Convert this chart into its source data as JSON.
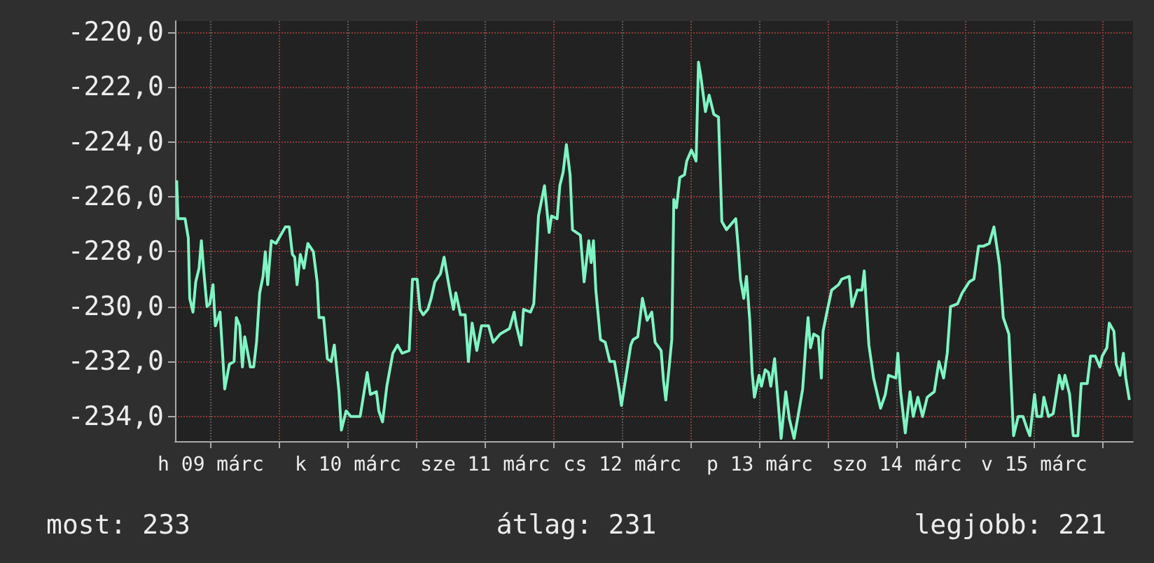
{
  "chart_data": {
    "type": "line",
    "x": [
      "--03-09T06:03",
      "--03-09T06:17",
      "--03-09T07:31",
      "--03-09T08:05",
      "--03-09T08:20",
      "--03-09T08:54",
      "--03-09T09:23",
      "--03-09T09:58",
      "--03-09T10:22",
      "--03-09T10:47",
      "--03-09T11:21",
      "--03-09T11:50",
      "--03-09T12:24",
      "--03-09T12:49",
      "--03-09T13:38",
      "--03-09T14:27",
      "--03-09T15:16",
      "--03-09T16:05",
      "--03-09T16:29",
      "--03-09T17:04",
      "--03-09T17:33",
      "--03-09T17:57",
      "--03-09T18:56",
      "--03-09T19:31",
      "--03-09T20:01",
      "--03-09T20:34",
      "--03-09T21:09",
      "--03-09T21:33",
      "--03-09T21:58",
      "--03-09T22:36",
      "--03-09T23:25",
      "--03-10T00:14",
      "--03-10T01:03",
      "--03-10T01:44",
      "--03-10T02:17",
      "--03-10T02:41",
      "--03-10T03:06",
      "--03-10T03:40",
      "--03-10T04:19",
      "--03-10T04:59",
      "--03-10T05:57",
      "--03-10T06:37",
      "--03-10T06:56",
      "--03-10T07:45",
      "--03-10T08:24",
      "--03-10T09:04",
      "--03-10T09:37",
      "--03-10T10:26",
      "--03-10T10:51",
      "--03-10T11:41",
      "--03-10T12:30",
      "--03-10T14:08",
      "--03-10T15:22",
      "--03-10T15:55",
      "--03-10T16:59",
      "--03-10T17:24",
      "--03-10T18:03",
      "--03-10T18:48",
      "--03-10T19:51",
      "--03-10T20:40",
      "--03-10T21:29",
      "--03-10T22:42",
      "--03-10T23:17",
      "--03-11T00:06",
      "--03-11T00:35",
      "--03-11T01:09",
      "--03-11T01:58",
      "--03-11T02:33",
      "--03-11T03:12",
      "--03-11T04:11",
      "--03-11T04:49",
      "--03-11T05:38",
      "--03-11T06:27",
      "--03-11T06:52",
      "--03-11T07:41",
      "--03-11T08:30",
      "--03-11T09:04",
      "--03-11T09:43",
      "--03-11T10:32",
      "--03-11T11:21",
      "--03-11T12:35",
      "--03-11T13:24",
      "--03-11T14:37",
      "--03-11T16:15",
      "--03-11T17:04",
      "--03-11T17:28",
      "--03-11T18:17",
      "--03-11T18:42",
      "--03-11T19:55",
      "--03-11T20:30",
      "--03-11T21:19",
      "--03-11T22:22",
      "--03-11T23:11",
      "--03-11T23:36",
      "--03-12T00:35",
      "--03-12T01:03",
      "--03-12T01:38",
      "--03-12T02:12",
      "--03-12T02:51",
      "--03-12T03:16",
      "--03-12T04:39",
      "--03-12T05:18",
      "--03-12T06:07",
      "--03-12T06:32",
      "--03-12T06:56",
      "--03-12T07:21",
      "--03-12T08:10",
      "--03-12T08:59",
      "--03-12T09:48",
      "--03-12T10:36",
      "--03-12T11:25",
      "--03-12T11:50",
      "--03-12T12:39",
      "--03-12T13:28",
      "--03-12T13:52",
      "--03-12T14:41",
      "--03-12T15:30",
      "--03-12T16:19",
      "--03-12T17:08",
      "--03-12T17:43",
      "--03-12T18:46",
      "--03-12T19:11",
      "--03-12T19:35",
      "--03-12T20:10",
      "--03-12T20:38",
      "--03-12T20:59",
      "--03-12T21:27",
      "--03-12T22:02",
      "--03-12T22:51",
      "--03-12T23:15",
      "--03-13T00:04",
      "--03-13T00:53",
      "--03-13T01:18",
      "--03-13T01:42",
      "--03-13T02:31",
      "--03-13T03:10",
      "--03-13T03:59",
      "--03-13T04:48",
      "--03-13T05:23",
      "--03-13T06:12",
      "--03-13T07:00",
      "--03-13T07:49",
      "--03-13T08:14",
      "--03-13T08:38",
      "--03-13T09:13",
      "--03-13T09:42",
      "--03-13T10:16",
      "--03-13T10:41",
      "--03-13T11:05",
      "--03-13T11:54",
      "--03-13T12:19",
      "--03-13T12:58",
      "--03-13T13:32",
      "--03-13T13:57",
      "--03-13T14:37",
      "--03-13T15:10",
      "--03-13T15:45",
      "--03-13T16:34",
      "--03-13T17:12",
      "--03-13T18:01",
      "--03-13T18:42",
      "--03-13T19:31",
      "--03-13T20:04",
      "--03-13T20:28",
      "--03-13T20:53",
      "--03-13T21:27",
      "--03-13T22:16",
      "--03-13T22:47",
      "--03-13T23:05",
      "--03-13T23:46",
      "--03-14T00:35",
      "--03-14T01:48",
      "--03-14T02:21",
      "--03-14T03:40",
      "--03-14T04:09",
      "--03-14T05:04",
      "--03-14T05:53",
      "--03-14T06:17",
      "--03-14T07:06",
      "--03-14T07:55",
      "--03-14T09:09",
      "--03-14T09:58",
      "--03-14T10:32",
      "--03-14T11:50",
      "--03-14T12:10",
      "--03-14T12:39",
      "--03-14T13:28",
      "--03-14T14:17",
      "--03-14T14:51",
      "--03-14T15:40",
      "--03-14T16:29",
      "--03-14T17:18",
      "--03-14T18:32",
      "--03-14T19:21",
      "--03-14T20:10",
      "--03-14T20:48",
      "--03-14T21:23",
      "--03-14T22:36",
      "--03-14T23:25",
      "--03-15T00:39",
      "--03-15T01:28",
      "--03-15T02:17",
      "--03-15T03:06",
      "--03-15T04:09",
      "--03-15T04:58",
      "--03-15T05:57",
      "--03-15T06:36",
      "--03-15T07:35",
      "--03-15T08:24",
      "--03-15T09:13",
      "--03-15T10:02",
      "--03-15T10:51",
      "--03-15T11:15",
      "--03-15T12:04",
      "--03-15T12:29",
      "--03-15T13:18",
      "--03-15T13:42",
      "--03-15T14:31",
      "--03-15T15:20",
      "--03-15T16:24",
      "--03-15T16:58",
      "--03-15T17:23",
      "--03-15T18:12",
      "--03-15T18:50",
      "--03-15T19:39",
      "--03-15T20:14",
      "--03-15T21:17",
      "--03-15T21:52",
      "--03-15T22:41",
      "--03-15T23:30",
      "--03-15T23:54",
      "--03-16T00:43",
      "--03-16T01:08",
      "--03-16T01:57",
      "--03-16T02:21",
      "--03-16T03:01",
      "--03-16T03:36",
      "--03-16T04:01",
      "--03-16T04:39"
    ],
    "series": [
      {
        "color": "#7ff5c4",
        "values": [
          -225.4,
          -226.8,
          -226.8,
          -227.5,
          -229.7,
          -230.2,
          -229.1,
          -228.6,
          -227.6,
          -228.7,
          -230.0,
          -229.9,
          -229.2,
          -230.7,
          -230.2,
          -233.0,
          -232.1,
          -232.0,
          -230.4,
          -230.7,
          -232.2,
          -231.1,
          -232.2,
          -232.2,
          -231.3,
          -229.5,
          -228.9,
          -228.0,
          -229.2,
          -227.6,
          -227.7,
          -227.4,
          -227.1,
          -227.1,
          -228.1,
          -228.2,
          -229.2,
          -228.1,
          -228.6,
          -227.7,
          -228.0,
          -229.1,
          -230.4,
          -230.4,
          -231.9,
          -232.0,
          -231.4,
          -233.1,
          -234.5,
          -233.8,
          -234.0,
          -234.0,
          -232.4,
          -233.2,
          -233.1,
          -233.8,
          -234.2,
          -232.9,
          -231.7,
          -231.4,
          -231.7,
          -231.6,
          -229.0,
          -229.0,
          -230.1,
          -230.3,
          -230.1,
          -229.7,
          -229.1,
          -228.8,
          -228.2,
          -229.2,
          -230.1,
          -229.5,
          -230.3,
          -230.3,
          -232.0,
          -230.6,
          -231.6,
          -230.7,
          -230.7,
          -231.3,
          -231.0,
          -230.8,
          -230.2,
          -230.7,
          -231.4,
          -230.1,
          -230.2,
          -229.9,
          -226.7,
          -225.6,
          -227.3,
          -226.7,
          -226.8,
          -225.6,
          -225.1,
          -224.1,
          -225.2,
          -227.2,
          -227.4,
          -229.1,
          -227.6,
          -228.4,
          -227.6,
          -229.4,
          -231.2,
          -231.3,
          -232.0,
          -232.0,
          -233.0,
          -233.6,
          -232.5,
          -231.4,
          -231.2,
          -231.1,
          -229.7,
          -230.5,
          -230.2,
          -231.3,
          -231.6,
          -232.7,
          -233.4,
          -232.2,
          -231.2,
          -226.1,
          -226.4,
          -225.3,
          -225.2,
          -224.7,
          -224.3,
          -224.7,
          -221.1,
          -221.6,
          -222.9,
          -222.3,
          -223.0,
          -223.1,
          -226.9,
          -227.2,
          -227.0,
          -226.8,
          -227.8,
          -229.0,
          -229.7,
          -228.9,
          -230.5,
          -232.4,
          -233.3,
          -232.5,
          -232.9,
          -232.3,
          -232.4,
          -232.9,
          -231.9,
          -233.3,
          -234.8,
          -233.1,
          -234.1,
          -234.8,
          -234.0,
          -233.0,
          -231.4,
          -230.4,
          -231.5,
          -231.0,
          -231.1,
          -232.6,
          -230.9,
          -230.2,
          -229.4,
          -229.2,
          -229.0,
          -228.9,
          -230.0,
          -229.4,
          -229.4,
          -228.7,
          -231.4,
          -232.6,
          -233.7,
          -233.2,
          -232.5,
          -232.6,
          -231.7,
          -233.1,
          -234.6,
          -233.1,
          -234.0,
          -233.3,
          -234.0,
          -233.3,
          -233.1,
          -232.0,
          -232.6,
          -231.7,
          -230.0,
          -229.9,
          -229.5,
          -229.1,
          -229.0,
          -227.8,
          -227.8,
          -227.7,
          -227.1,
          -228.5,
          -230.4,
          -231.0,
          -234.7,
          -234.0,
          -234.0,
          -234.5,
          -234.7,
          -233.2,
          -234.0,
          -234.0,
          -233.3,
          -234.0,
          -233.9,
          -232.5,
          -233.0,
          -232.5,
          -233.2,
          -234.7,
          -234.7,
          -232.8,
          -232.8,
          -231.8,
          -231.8,
          -232.2,
          -231.8,
          -231.5,
          -230.6,
          -230.9,
          -232.1,
          -232.5,
          -231.7,
          -232.6,
          -233.4
        ]
      }
    ],
    "xlim": [
      "--03-09T05:46",
      "--03-16T05:17"
    ],
    "xticks": [
      {
        "value": "--03-09T12:00",
        "label": "h 09 márc"
      },
      {
        "value": "--03-10",
        "label": null
      },
      {
        "value": "--03-10T12:00",
        "label": "k 10 márc"
      },
      {
        "value": "--03-11",
        "label": null
      },
      {
        "value": "--03-11T12:00",
        "label": "sze 11 márc"
      },
      {
        "value": "--03-12",
        "label": null
      },
      {
        "value": "--03-12T12:00",
        "label": "cs 12 márc"
      },
      {
        "value": "--03-13",
        "label": null
      },
      {
        "value": "--03-13T12:00",
        "label": "p 13 márc"
      },
      {
        "value": "--03-14",
        "label": null
      },
      {
        "value": "--03-14T12:00",
        "label": "szo 14 márc"
      },
      {
        "value": "--03-15",
        "label": null
      },
      {
        "value": "--03-15T12:00",
        "label": "v 15 márc"
      },
      {
        "value": "--03-16",
        "label": null
      }
    ],
    "ylim": [
      -234.9,
      -219.6
    ],
    "yticks": [
      {
        "value": -234,
        "label": "-234,0"
      },
      {
        "value": -232,
        "label": "-232,0"
      },
      {
        "value": -230,
        "label": "-230,0"
      },
      {
        "value": -228,
        "label": "-228,0"
      },
      {
        "value": -226,
        "label": "-226,0"
      },
      {
        "value": -224,
        "label": "-224,0"
      },
      {
        "value": -222,
        "label": "-222,0"
      },
      {
        "value": -220,
        "label": "-220,0"
      }
    ],
    "annotations": [
      "most: 233",
      "átlag: 231",
      "legjobb: 221"
    ],
    "grid": true,
    "marker": "none",
    "line_style": "solid"
  }
}
